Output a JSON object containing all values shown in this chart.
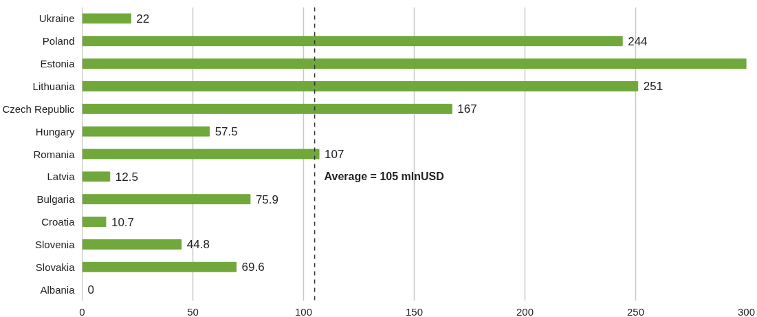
{
  "chart_data": {
    "type": "bar",
    "orientation": "horizontal",
    "categories": [
      "Ukraine",
      "Poland",
      "Estonia",
      "Lithuania",
      "Czech Republic",
      "Hungary",
      "Romania",
      "Latvia",
      "Bulgaria",
      "Croatia",
      "Slovenia",
      "Slovakia",
      "Albania"
    ],
    "values": [
      22,
      244,
      300,
      251,
      167,
      57.5,
      107,
      12.5,
      75.9,
      10.7,
      44.8,
      69.6,
      0
    ],
    "value_labels": [
      "22",
      "244",
      null,
      "251",
      "167",
      "57.5",
      "107",
      "12.5",
      "75.9",
      "10.7",
      "44.8",
      "69.6",
      "0"
    ],
    "color": "#70a83b",
    "xlim": [
      0,
      300
    ],
    "xticks": [
      0,
      50,
      100,
      150,
      200,
      250,
      300
    ],
    "grid": "x",
    "ref_lines": [
      {
        "axis": "x",
        "value": 105,
        "label": "Average = 105 mlnUSD",
        "color": "#333333",
        "line_style": "dashed"
      }
    ]
  }
}
